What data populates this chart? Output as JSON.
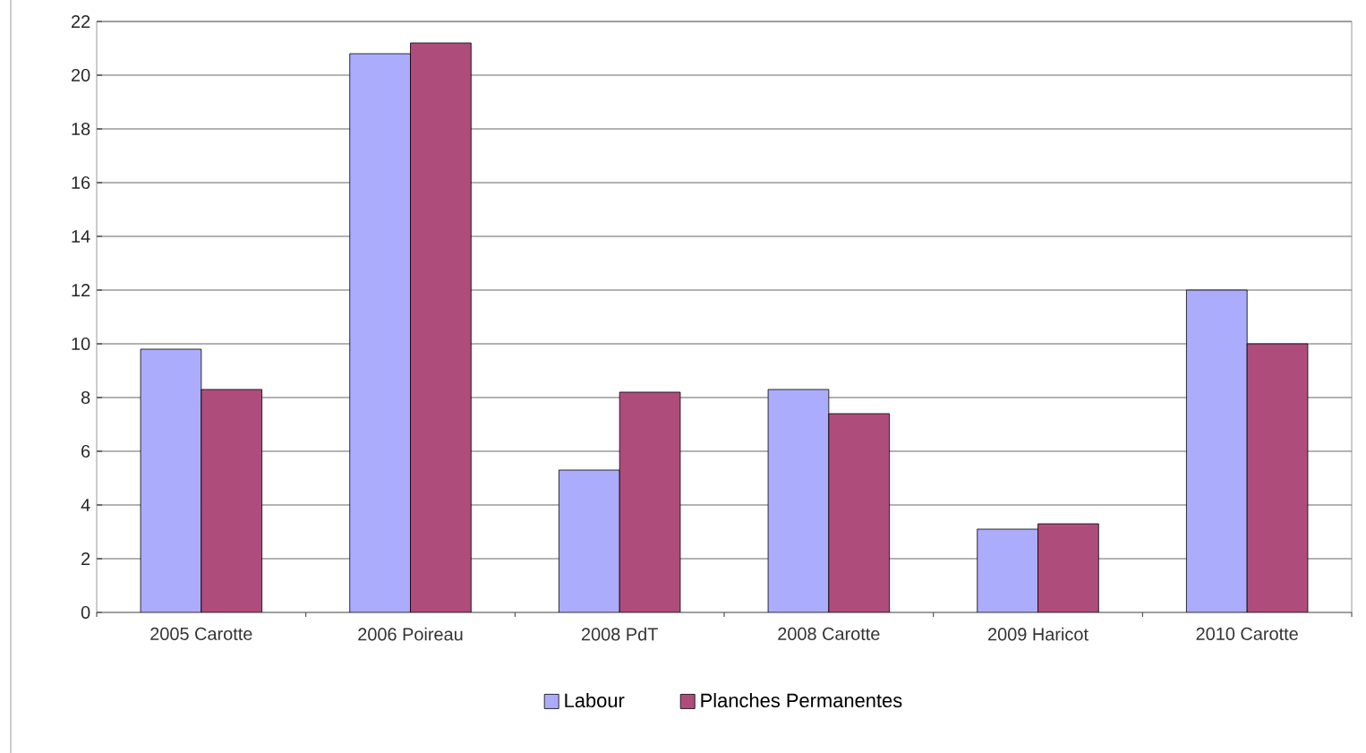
{
  "chart_data": {
    "type": "bar",
    "categories": [
      "2005 Carotte",
      "2006 Poireau",
      "2008 PdT",
      "2008 Carotte",
      "2009 Haricot",
      "2010 Carotte"
    ],
    "series": [
      {
        "name": "Labour",
        "color": "#acacfc",
        "values": [
          9.8,
          20.8,
          5.3,
          8.3,
          3.1,
          12.0
        ]
      },
      {
        "name": "Planches Permanentes",
        "color": "#ae4d7c",
        "values": [
          8.3,
          21.2,
          8.2,
          7.4,
          3.3,
          10.0
        ]
      }
    ],
    "ylim": [
      0,
      22
    ],
    "yticks": [
      0,
      2,
      4,
      6,
      8,
      10,
      12,
      14,
      16,
      18,
      20,
      22
    ],
    "grid": "y",
    "legend": "bottom"
  }
}
